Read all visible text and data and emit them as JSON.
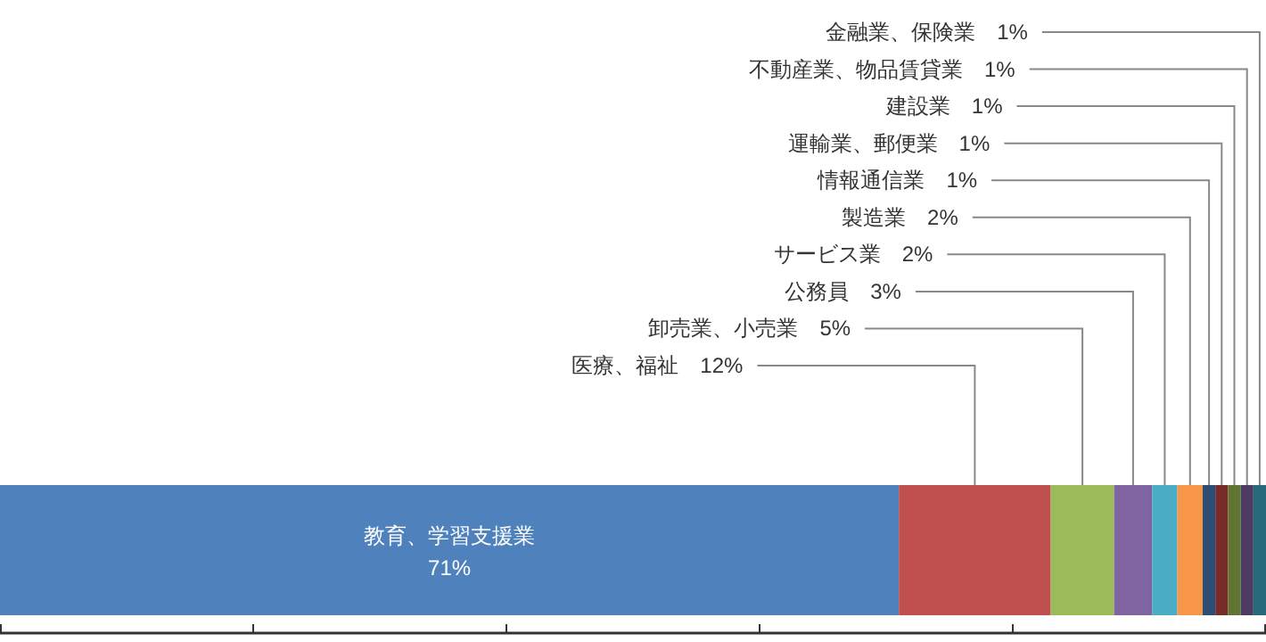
{
  "chart_data": {
    "type": "bar",
    "orientation": "horizontal",
    "stacked": true,
    "legend": false,
    "categories": [
      null
    ],
    "xlim": [
      0,
      100
    ],
    "xticks": [
      {
        "value": 0,
        "label": null
      },
      {
        "value": 20,
        "label": null
      },
      {
        "value": 40,
        "label": null
      },
      {
        "value": 60,
        "label": null
      },
      {
        "value": 80,
        "label": null
      },
      {
        "value": 100,
        "label": null
      }
    ],
    "series": [
      {
        "name": "教育、学習支援業",
        "color": "#4f81bd",
        "values": [
          71
        ],
        "value_labels": [
          "71%"
        ]
      },
      {
        "name": "医療、福祉",
        "color": "#c0504d",
        "values": [
          12
        ],
        "value_labels": [
          "12%"
        ]
      },
      {
        "name": "卸売業、小売業",
        "color": "#9bbb59",
        "values": [
          5
        ],
        "value_labels": [
          "5%"
        ]
      },
      {
        "name": "公務員",
        "color": "#8064a2",
        "values": [
          3
        ],
        "value_labels": [
          "3%"
        ]
      },
      {
        "name": "サービス業",
        "color": "#4bacc6",
        "values": [
          2
        ],
        "value_labels": [
          "2%"
        ]
      },
      {
        "name": "製造業",
        "color": "#f79646",
        "values": [
          2
        ],
        "value_labels": [
          "2%"
        ]
      },
      {
        "name": "情報通信業",
        "color": "#2c4d75",
        "values": [
          1
        ],
        "value_labels": [
          "1%"
        ]
      },
      {
        "name": "運輸業、郵便業",
        "color": "#772c2a",
        "values": [
          1
        ],
        "value_labels": [
          "1%"
        ]
      },
      {
        "name": "建設業",
        "color": "#5f7530",
        "values": [
          1
        ],
        "value_labels": [
          "1%"
        ]
      },
      {
        "name": "不動産業、物品賃貸業",
        "color": "#4d3b62",
        "values": [
          1
        ],
        "value_labels": [
          "1%"
        ]
      },
      {
        "name": "金融業、保険業",
        "color": "#276a7c",
        "values": [
          1
        ],
        "value_labels": [
          "1%"
        ]
      }
    ]
  }
}
